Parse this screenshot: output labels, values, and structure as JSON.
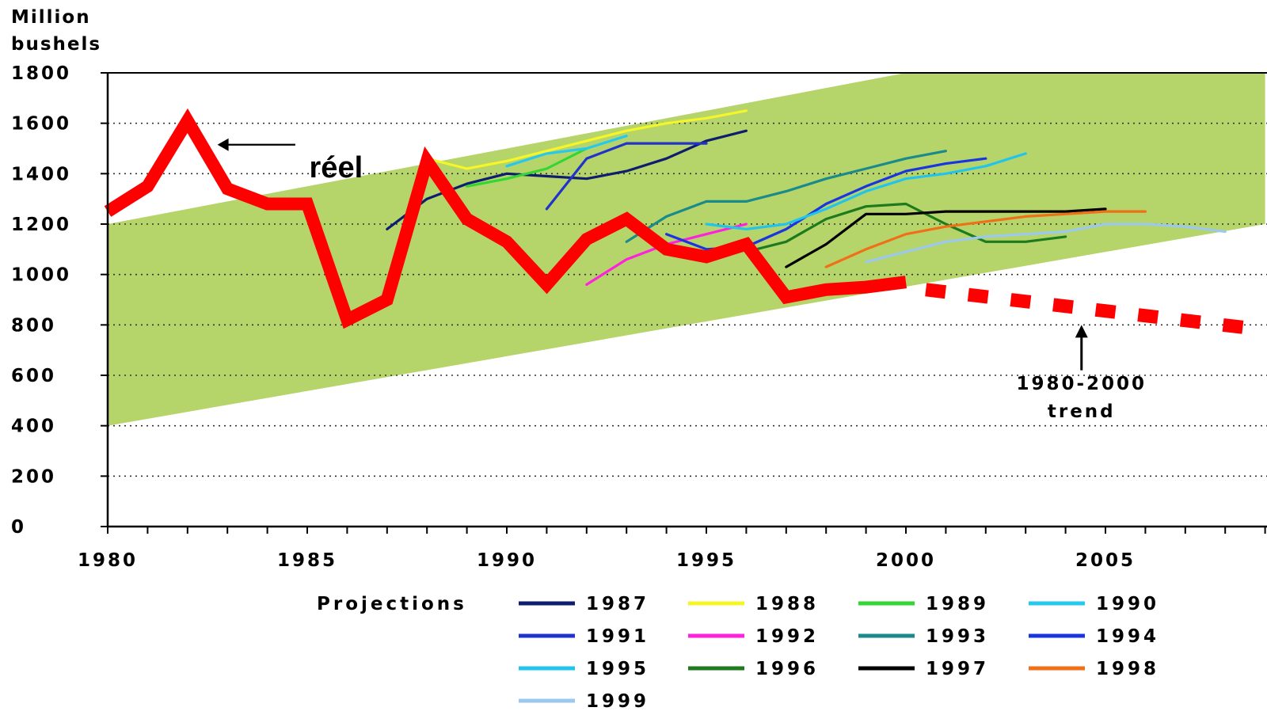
{
  "chart_data": {
    "type": "line",
    "ylabel": [
      "Million",
      "bushels"
    ],
    "xlim": [
      1980,
      2009
    ],
    "ylim": [
      0,
      1800
    ],
    "x_ticks": [
      1980,
      1985,
      1990,
      1995,
      2000,
      2005
    ],
    "y_ticks": [
      0,
      200,
      400,
      600,
      800,
      1000,
      1200,
      1400,
      1600,
      1800
    ],
    "grid": "horizontal-dotted",
    "band": {
      "color": "#b5d56a",
      "lower": [
        [
          1980,
          400
        ],
        [
          2009,
          1200
        ]
      ],
      "upper": [
        [
          1980,
          1200
        ],
        [
          2000,
          1800
        ],
        [
          2009,
          1800
        ]
      ]
    },
    "actual": {
      "label": "réel",
      "color": "#ff0000",
      "x": [
        1980,
        1981,
        1982,
        1983,
        1984,
        1985,
        1986,
        1987,
        1988,
        1989,
        1990,
        1991,
        1992,
        1993,
        1994,
        1995,
        1996,
        1997,
        1998,
        1999,
        2000
      ],
      "y": [
        1250,
        1350,
        1610,
        1340,
        1280,
        1280,
        820,
        900,
        1450,
        1220,
        1130,
        960,
        1140,
        1220,
        1100,
        1070,
        1120,
        910,
        940,
        950,
        970
      ]
    },
    "trend": {
      "label": [
        "1980-2000",
        "trend"
      ],
      "color": "#ff0000",
      "x": [
        2000.5,
        2009
      ],
      "y": [
        940,
        780
      ]
    },
    "legend_title": "Projections",
    "series": [
      {
        "name": "1987",
        "color": "#0f1d6e",
        "x": [
          1987,
          1988,
          1989,
          1990,
          1991,
          1992,
          1993,
          1994,
          1995,
          1996
        ],
        "y": [
          1180,
          1300,
          1360,
          1400,
          1390,
          1380,
          1410,
          1460,
          1530,
          1570
        ]
      },
      {
        "name": "1988",
        "color": "#f5f52a",
        "x": [
          1988,
          1989,
          1990,
          1991,
          1992,
          1993,
          1994,
          1995,
          1996
        ],
        "y": [
          1460,
          1420,
          1450,
          1490,
          1530,
          1570,
          1600,
          1620,
          1650
        ]
      },
      {
        "name": "1989",
        "color": "#33d633",
        "x": [
          1989,
          1990,
          1991,
          1992
        ],
        "y": [
          1350,
          1380,
          1420,
          1500
        ]
      },
      {
        "name": "1990",
        "color": "#27c8ee",
        "x": [
          1990,
          1991,
          1992,
          1993
        ],
        "y": [
          1430,
          1480,
          1500,
          1550
        ]
      },
      {
        "name": "1991",
        "color": "#2233cc",
        "x": [
          1991,
          1992,
          1993,
          1994,
          1995
        ],
        "y": [
          1260,
          1460,
          1520,
          1520,
          1520
        ]
      },
      {
        "name": "1992",
        "color": "#ff22dd",
        "x": [
          1992,
          1993,
          1994,
          1995,
          1996
        ],
        "y": [
          960,
          1060,
          1120,
          1160,
          1200
        ]
      },
      {
        "name": "1993",
        "color": "#1a8a8a",
        "x": [
          1993,
          1994,
          1995,
          1996,
          1997,
          1998,
          1999,
          2000,
          2001
        ],
        "y": [
          1130,
          1230,
          1290,
          1290,
          1330,
          1380,
          1420,
          1460,
          1490
        ]
      },
      {
        "name": "1994",
        "color": "#1a35e0",
        "x": [
          1994,
          1995,
          1996,
          1997,
          1998,
          1999,
          2000,
          2001,
          2002
        ],
        "y": [
          1160,
          1100,
          1110,
          1180,
          1280,
          1350,
          1410,
          1440,
          1460
        ]
      },
      {
        "name": "1995",
        "color": "#22c4ec",
        "x": [
          1995,
          1996,
          1997,
          1998,
          1999,
          2000,
          2001,
          2002,
          2003
        ],
        "y": [
          1200,
          1180,
          1200,
          1260,
          1330,
          1380,
          1400,
          1430,
          1480
        ]
      },
      {
        "name": "1996",
        "color": "#1d7a1d",
        "x": [
          1996,
          1997,
          1998,
          1999,
          2000,
          2001,
          2002,
          2003,
          2004
        ],
        "y": [
          1090,
          1130,
          1220,
          1270,
          1280,
          1200,
          1130,
          1130,
          1150
        ]
      },
      {
        "name": "1997",
        "color": "#000000",
        "x": [
          1997,
          1998,
          1999,
          2000,
          2001,
          2002,
          2003,
          2004,
          2005
        ],
        "y": [
          1030,
          1120,
          1240,
          1240,
          1250,
          1250,
          1250,
          1250,
          1260
        ]
      },
      {
        "name": "1998",
        "color": "#f07018",
        "x": [
          1998,
          1999,
          2000,
          2001,
          2002,
          2003,
          2004,
          2005,
          2006
        ],
        "y": [
          1030,
          1100,
          1160,
          1190,
          1210,
          1230,
          1240,
          1250,
          1250
        ]
      },
      {
        "name": "1999",
        "color": "#9cc8f0",
        "x": [
          1999,
          2000,
          2001,
          2002,
          2003,
          2004,
          2005,
          2006,
          2007,
          2008
        ],
        "y": [
          1050,
          1090,
          1130,
          1150,
          1160,
          1170,
          1200,
          1200,
          1190,
          1170
        ]
      }
    ]
  }
}
